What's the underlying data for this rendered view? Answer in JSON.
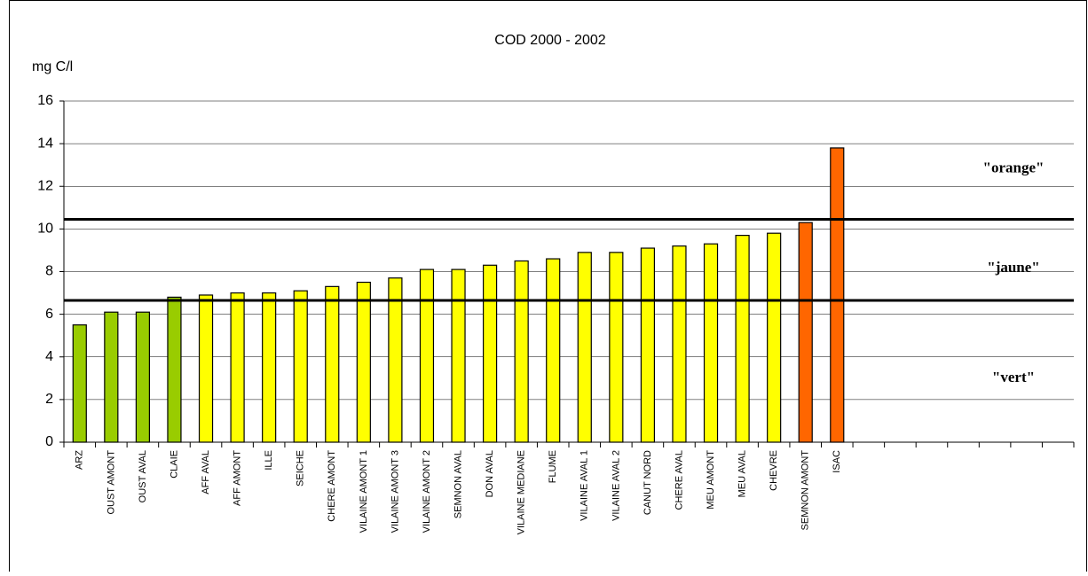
{
  "chart_data": {
    "type": "bar",
    "title": "COD 2000 - 2002",
    "y_label": "mg C/l",
    "categories": [
      "ARZ",
      "OUST AMONT",
      "OUST AVAL",
      "CLAIE",
      "AFF AVAL",
      "AFF AMONT",
      "ILLE",
      "SEICHE",
      "CHERE AMONT",
      "VILAINE AMONT 1",
      "VILAINE AMONT 3",
      "VILAINE AMONT 2",
      "SEMNON AVAL",
      "DON AVAL",
      "VILAINE MEDIANE",
      "FLUME",
      "VILAINE AVAL 1",
      "VILAINE AVAL 2",
      "CANUT NORD",
      "CHERE AVAL",
      "MEU AMONT",
      "MEU AVAL",
      "CHEVRE",
      "SEMNON AMONT",
      "ISAC",
      null,
      null,
      null,
      null,
      null,
      null,
      null
    ],
    "values": [
      5.5,
      6.1,
      6.1,
      6.8,
      6.9,
      7.0,
      7.0,
      7.1,
      7.3,
      7.5,
      7.7,
      8.1,
      8.1,
      8.3,
      8.5,
      8.6,
      8.9,
      8.9,
      9.1,
      9.2,
      9.3,
      9.7,
      9.8,
      10.3,
      13.8,
      null,
      null,
      null,
      null,
      null,
      null,
      null
    ],
    "colors": [
      "#99cc00",
      "#99cc00",
      "#99cc00",
      "#99cc00",
      "#ffff00",
      "#ffff00",
      "#ffff00",
      "#ffff00",
      "#ffff00",
      "#ffff00",
      "#ffff00",
      "#ffff00",
      "#ffff00",
      "#ffff00",
      "#ffff00",
      "#ffff00",
      "#ffff00",
      "#ffff00",
      "#ffff00",
      "#ffff00",
      "#ffff00",
      "#ffff00",
      "#ffff00",
      "#ff6600",
      "#ff6600",
      null,
      null,
      null,
      null,
      null,
      null,
      null
    ],
    "ylim": [
      0,
      16
    ],
    "yticks": [
      0,
      2,
      4,
      6,
      8,
      10,
      12,
      14,
      16
    ],
    "grid": true,
    "thresholds": [
      6.65,
      10.45
    ],
    "zone_labels": [
      "\"vert\"",
      "\"jaune\"",
      "\"orange\""
    ]
  }
}
